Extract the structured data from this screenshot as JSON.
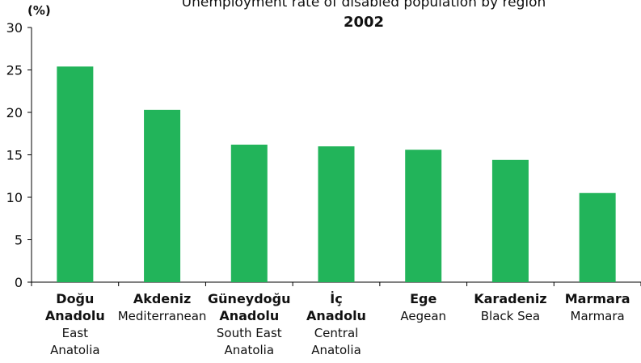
{
  "chart_data": {
    "type": "bar",
    "title": "Unemployment rate of disabled population by region",
    "subtitle": "2002",
    "ylabel": "(%)",
    "ylim": [
      0,
      30
    ],
    "yticks": [
      0,
      5,
      10,
      15,
      20,
      25,
      30
    ],
    "grid": false,
    "categories": [
      {
        "tr": [
          "Doğu",
          "Anadolu"
        ],
        "en": [
          "East",
          "Anatolia"
        ]
      },
      {
        "tr": [
          "Akdeniz"
        ],
        "en": [
          "Mediterranean"
        ]
      },
      {
        "tr": [
          "Güneydoğu",
          "Anadolu"
        ],
        "en": [
          "South East",
          "Anatolia"
        ]
      },
      {
        "tr": [
          "İç",
          "Anadolu"
        ],
        "en": [
          "Central",
          "Anatolia"
        ]
      },
      {
        "tr": [
          "Ege"
        ],
        "en": [
          "Aegean"
        ]
      },
      {
        "tr": [
          "Karadeniz"
        ],
        "en": [
          "Black Sea"
        ]
      },
      {
        "tr": [
          "Marmara"
        ],
        "en": [
          "Marmara"
        ]
      }
    ],
    "values": [
      25.4,
      20.3,
      16.2,
      16.0,
      15.6,
      14.4,
      10.5
    ],
    "bar_color": "#22b45a"
  }
}
